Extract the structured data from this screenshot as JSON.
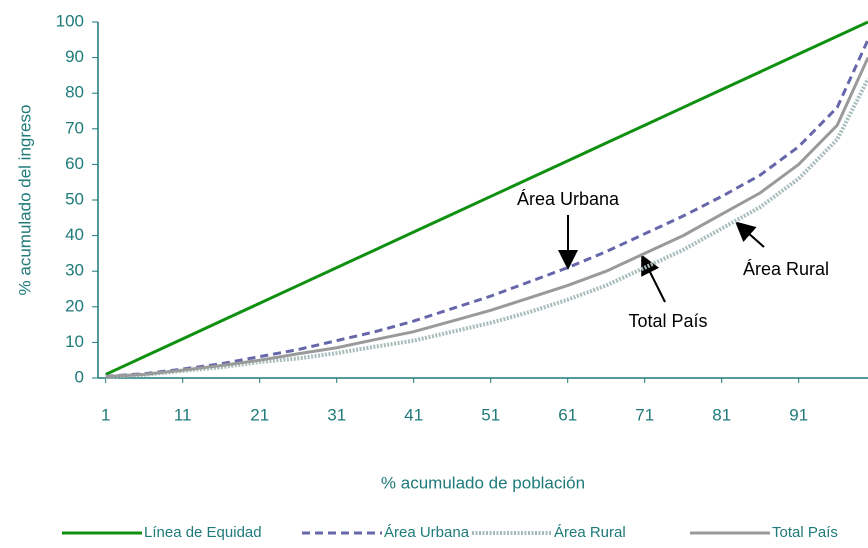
{
  "chart_data": {
    "type": "line",
    "xlabel": "% acumulado de población",
    "ylabel": "% acumulado del ingreso",
    "x": [
      1,
      6,
      11,
      16,
      21,
      26,
      31,
      36,
      41,
      46,
      51,
      56,
      61,
      66,
      71,
      76,
      81,
      86,
      91,
      96,
      100
    ],
    "series": [
      {
        "name": "Línea de Equidad",
        "color": "#109010",
        "style": "solid",
        "values": [
          1,
          6,
          11,
          16,
          21,
          26,
          31,
          36,
          41,
          46,
          51,
          56,
          61,
          66,
          71,
          76,
          81,
          86,
          91,
          96,
          100
        ]
      },
      {
        "name": "Área Urbana",
        "color": "#6666aa",
        "style": "dashed",
        "values": [
          0.5,
          1.2,
          2.5,
          4,
          6,
          8,
          10.5,
          13,
          16,
          19.5,
          23,
          27,
          31,
          35.5,
          40.5,
          45.5,
          51,
          57,
          65,
          76,
          95
        ]
      },
      {
        "name": "Área Rural",
        "color": "#a8bcbc",
        "style": "hatched",
        "values": [
          0.3,
          0.9,
          2,
          3,
          4.5,
          5.5,
          7,
          8.8,
          10.5,
          13,
          15.5,
          18.5,
          22,
          26,
          31,
          36,
          42,
          48,
          56,
          67,
          84
        ]
      },
      {
        "name": "Total País",
        "color": "#9a9a9a",
        "style": "solid",
        "values": [
          0.4,
          1,
          2.2,
          3.5,
          5,
          6.8,
          8.5,
          10.8,
          13,
          16,
          19,
          22.5,
          26,
          30,
          35,
          40,
          46,
          52,
          60,
          71,
          90
        ]
      }
    ],
    "annotations": [
      "Área Urbana",
      "Total País",
      "Área Rural"
    ],
    "xlim": [
      0,
      100
    ],
    "xticks": [
      1,
      11,
      21,
      31,
      41,
      51,
      61,
      71,
      81,
      91
    ],
    "ylim": [
      0,
      100
    ],
    "yticks": [
      0,
      10,
      20,
      30,
      40,
      50,
      60,
      70,
      80,
      90,
      100
    ],
    "grid": false
  }
}
